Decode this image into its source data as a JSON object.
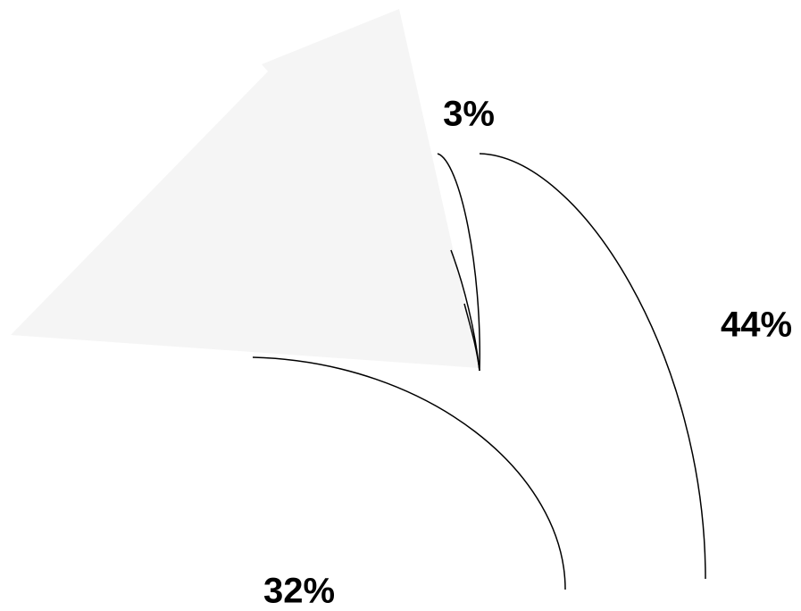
{
  "chart_data": {
    "type": "pie",
    "values": [
      3,
      44,
      32
    ],
    "value_labels": [
      "3%",
      "44%",
      "32%"
    ]
  }
}
